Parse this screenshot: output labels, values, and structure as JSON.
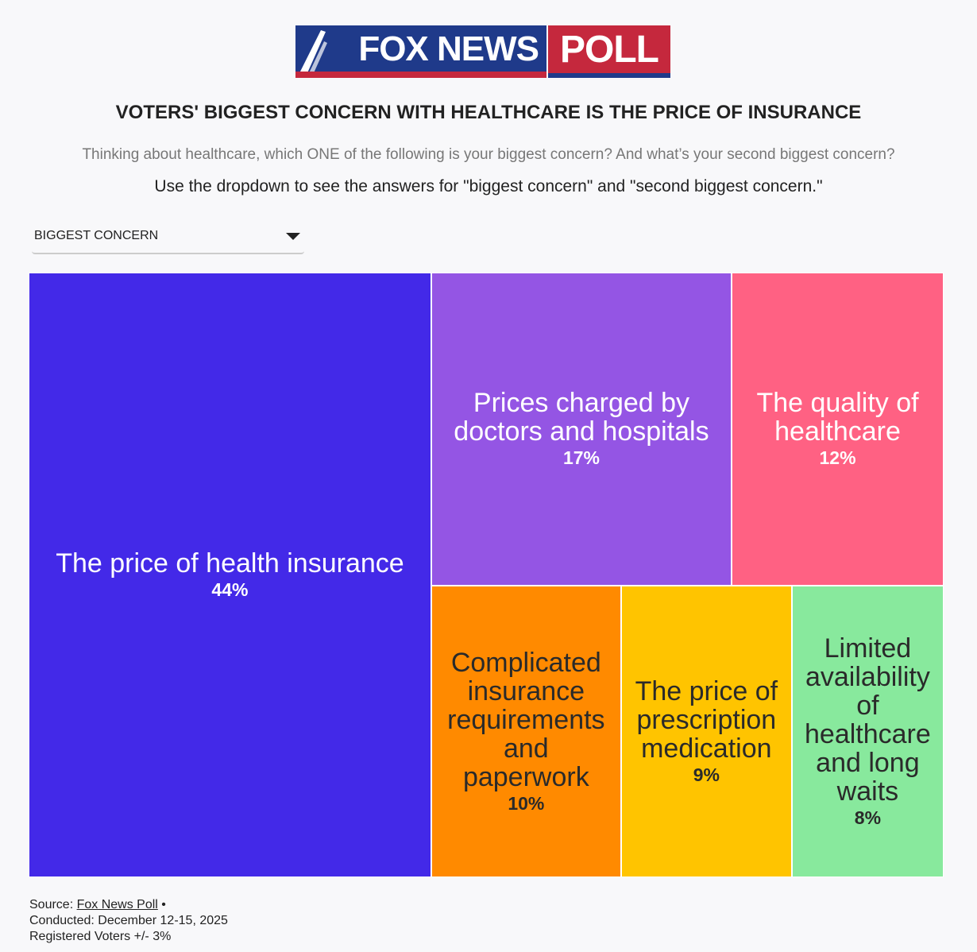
{
  "logo": {
    "brand": "FOX NEWS",
    "product": "POLL"
  },
  "headline": "VOTERS' BIGGEST CONCERN WITH HEALTHCARE IS THE PRICE OF INSURANCE",
  "question": "Thinking about healthcare, which ONE of the following is your biggest concern? And what’s your second biggest concern?",
  "instruction": "Use the dropdown to see the answers for \"biggest concern\" and \"second biggest concern.\"",
  "dropdown": {
    "selected": "BIGGEST CONCERN"
  },
  "colors": {
    "brand_blue": "#1f3a8a",
    "brand_red": "#c5283d"
  },
  "chart_data": {
    "type": "treemap",
    "title": "VOTERS' BIGGEST CONCERN WITH HEALTHCARE IS THE PRICE OF INSURANCE",
    "unit": "%",
    "items": [
      {
        "label": "The price of health insurance",
        "value": 44,
        "color": "#4329e8",
        "text_color": "#ffffff"
      },
      {
        "label": "Prices charged by doctors and hospitals",
        "value": 17,
        "color": "#9455e4",
        "text_color": "#ffffff"
      },
      {
        "label": "The quality of healthcare",
        "value": 12,
        "color": "#ff6183",
        "text_color": "#ffffff"
      },
      {
        "label": "Complicated insurance requirements and paperwork",
        "value": 10,
        "color": "#ff8a00",
        "text_color": "#2a2a2a"
      },
      {
        "label": "The price of prescription medication",
        "value": 9,
        "color": "#ffc400",
        "text_color": "#2a2a2a"
      },
      {
        "label": "Limited availability of healthcare and long waits",
        "value": 8,
        "color": "#88e99d",
        "text_color": "#2a2a2a"
      }
    ]
  },
  "footer": {
    "source_prefix": "Source: ",
    "source_link": "Fox News Poll",
    "source_suffix": " •",
    "conducted": "Conducted: December 12-15, 2025",
    "sample": "Registered Voters +/- 3%"
  }
}
